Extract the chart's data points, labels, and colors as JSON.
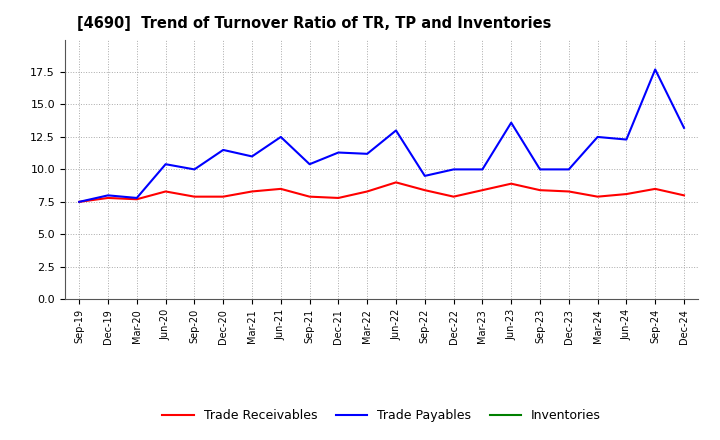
{
  "title": "[4690]  Trend of Turnover Ratio of TR, TP and Inventories",
  "x_labels": [
    "Sep-19",
    "Dec-19",
    "Mar-20",
    "Jun-20",
    "Sep-20",
    "Dec-20",
    "Mar-21",
    "Jun-21",
    "Sep-21",
    "Dec-21",
    "Mar-22",
    "Jun-22",
    "Sep-22",
    "Dec-22",
    "Mar-23",
    "Jun-23",
    "Sep-23",
    "Dec-23",
    "Mar-24",
    "Jun-24",
    "Sep-24",
    "Dec-24"
  ],
  "trade_receivables": [
    7.5,
    7.8,
    7.7,
    8.3,
    7.9,
    7.9,
    8.3,
    8.5,
    7.9,
    7.8,
    8.3,
    9.0,
    8.4,
    7.9,
    8.4,
    8.9,
    8.4,
    8.3,
    7.9,
    8.1,
    8.5,
    8.0
  ],
  "trade_payables": [
    7.5,
    8.0,
    7.8,
    10.4,
    10.0,
    11.5,
    11.0,
    12.5,
    10.4,
    11.3,
    11.2,
    13.0,
    9.5,
    10.0,
    10.0,
    13.6,
    10.0,
    10.0,
    12.5,
    12.3,
    17.7,
    13.2
  ],
  "inventories": [
    null,
    null,
    null,
    null,
    null,
    null,
    null,
    null,
    null,
    null,
    null,
    null,
    null,
    null,
    null,
    null,
    null,
    null,
    null,
    null,
    null,
    null
  ],
  "tr_color": "#ff0000",
  "tp_color": "#0000ff",
  "inv_color": "#008000",
  "ylim": [
    0,
    20
  ],
  "yticks": [
    0.0,
    2.5,
    5.0,
    7.5,
    10.0,
    12.5,
    15.0,
    17.5
  ],
  "grid_color": "#aaaaaa",
  "bg_color": "#ffffff",
  "legend_labels": [
    "Trade Receivables",
    "Trade Payables",
    "Inventories"
  ]
}
